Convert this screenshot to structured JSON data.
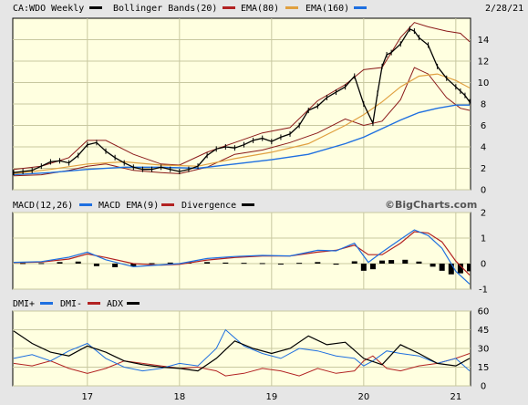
{
  "chart_data": [
    {
      "type": "line",
      "panel": "price",
      "title": "CA:WDO Weekly",
      "date": "2/28/21",
      "legend": [
        {
          "label": "Bollinger Bands(20)",
          "color": "#000000"
        },
        {
          "label": "EMA(80)",
          "color": "#b22222"
        },
        {
          "label": "EMA(160)",
          "color": "#e0a040"
        },
        {
          "label": "",
          "color": "#1e6fe0"
        }
      ],
      "ylim": [
        0,
        16
      ],
      "yticks": [
        0,
        2,
        4,
        6,
        8,
        10,
        12,
        14
      ],
      "x_years": [
        "17",
        "18",
        "19",
        "20",
        "21"
      ],
      "x_year_positions": [
        2017.0,
        2018.0,
        2019.0,
        2020.0,
        2021.0
      ],
      "x_range": [
        2016.19,
        2021.16
      ],
      "price": {
        "x": [
          2016.2,
          2016.3,
          2016.4,
          2016.5,
          2016.6,
          2016.7,
          2016.8,
          2016.9,
          2017.0,
          2017.1,
          2017.2,
          2017.3,
          2017.4,
          2017.5,
          2017.6,
          2017.7,
          2017.8,
          2017.9,
          2018.0,
          2018.1,
          2018.2,
          2018.3,
          2018.4,
          2018.5,
          2018.6,
          2018.7,
          2018.8,
          2018.9,
          2019.0,
          2019.1,
          2019.2,
          2019.3,
          2019.4,
          2019.5,
          2019.6,
          2019.7,
          2019.8,
          2019.9,
          2020.0,
          2020.1,
          2020.15,
          2020.2,
          2020.25,
          2020.3,
          2020.4,
          2020.5,
          2020.55,
          2020.6,
          2020.7,
          2020.8,
          2020.9,
          2021.0,
          2021.05,
          2021.1,
          2021.15
        ],
        "y": [
          1.6,
          1.7,
          1.8,
          2.2,
          2.6,
          2.7,
          2.5,
          3.2,
          4.2,
          4.4,
          3.6,
          3.0,
          2.5,
          2.1,
          1.9,
          1.9,
          2.1,
          1.9,
          1.7,
          1.9,
          2.2,
          3.2,
          3.8,
          4.0,
          3.9,
          4.2,
          4.6,
          4.8,
          4.5,
          4.9,
          5.2,
          6.0,
          7.4,
          7.8,
          8.6,
          9.1,
          9.6,
          10.6,
          8.0,
          6.2,
          9.0,
          11.5,
          12.6,
          12.8,
          13.6,
          15.0,
          14.8,
          14.2,
          13.5,
          11.5,
          10.4,
          9.6,
          9.2,
          8.8,
          8.2
        ]
      },
      "ema80": {
        "x": [
          2016.2,
          2016.6,
          2017.0,
          2017.4,
          2017.8,
          2018.2,
          2018.6,
          2019.0,
          2019.4,
          2019.8,
          2020.0,
          2020.2,
          2020.4,
          2020.6,
          2020.8,
          2021.0,
          2021.15
        ],
        "y": [
          1.5,
          1.9,
          2.4,
          2.6,
          2.3,
          2.2,
          2.9,
          3.5,
          4.3,
          6.0,
          7.0,
          8.2,
          9.6,
          10.6,
          10.8,
          10.2,
          9.5
        ]
      },
      "ema160": {
        "x": [
          2016.2,
          2016.6,
          2017.0,
          2017.4,
          2017.8,
          2018.2,
          2018.6,
          2019.0,
          2019.4,
          2019.8,
          2020.0,
          2020.2,
          2020.4,
          2020.6,
          2020.8,
          2021.0,
          2021.15
        ],
        "y": [
          1.4,
          1.6,
          1.9,
          2.1,
          2.1,
          2.0,
          2.4,
          2.8,
          3.3,
          4.3,
          4.9,
          5.7,
          6.5,
          7.2,
          7.6,
          7.9,
          7.9
        ]
      },
      "bb_upper": {
        "x": [
          2016.2,
          2016.5,
          2016.8,
          2017.0,
          2017.2,
          2017.5,
          2017.8,
          2018.0,
          2018.3,
          2018.6,
          2018.9,
          2019.2,
          2019.5,
          2019.8,
          2020.0,
          2020.2,
          2020.4,
          2020.55,
          2020.7,
          2020.9,
          2021.05,
          2021.15
        ],
        "y": [
          1.9,
          2.2,
          3.0,
          4.6,
          4.6,
          3.3,
          2.4,
          2.3,
          3.5,
          4.4,
          5.3,
          5.8,
          8.3,
          9.8,
          11.2,
          11.4,
          14.2,
          15.6,
          15.2,
          14.8,
          14.6,
          13.8
        ]
      },
      "bb_lower": {
        "x": [
          2016.2,
          2016.5,
          2016.8,
          2017.0,
          2017.2,
          2017.5,
          2017.8,
          2018.0,
          2018.3,
          2018.6,
          2018.9,
          2019.2,
          2019.5,
          2019.8,
          2020.0,
          2020.2,
          2020.4,
          2020.55,
          2020.7,
          2020.9,
          2021.05,
          2021.15
        ],
        "y": [
          1.3,
          1.4,
          1.8,
          2.2,
          2.4,
          1.8,
          1.6,
          1.5,
          2.1,
          3.3,
          3.7,
          4.4,
          5.3,
          6.6,
          6.0,
          6.4,
          8.4,
          11.4,
          10.8,
          8.6,
          7.6,
          7.4
        ]
      }
    },
    {
      "type": "line",
      "panel": "macd",
      "legend": [
        {
          "label": "MACD(12,26)",
          "color": "#1e6fe0"
        },
        {
          "label": "MACD EMA(9)",
          "color": "#b22222"
        },
        {
          "label": "Divergence",
          "color": "#000000"
        }
      ],
      "watermark": "©BigCharts.com",
      "ylim": [
        -1,
        2
      ],
      "yticks": [
        -1,
        0,
        1,
        2
      ],
      "macd": {
        "x": [
          2016.2,
          2016.5,
          2016.8,
          2017.0,
          2017.2,
          2017.5,
          2017.8,
          2018.0,
          2018.3,
          2018.6,
          2018.9,
          2019.2,
          2019.5,
          2019.7,
          2019.9,
          2020.05,
          2020.2,
          2020.4,
          2020.55,
          2020.7,
          2020.85,
          2021.0,
          2021.15
        ],
        "y": [
          0.05,
          0.08,
          0.25,
          0.45,
          0.15,
          -0.12,
          -0.05,
          0.0,
          0.2,
          0.28,
          0.32,
          0.3,
          0.52,
          0.5,
          0.8,
          0.05,
          0.45,
          0.95,
          1.32,
          1.1,
          0.6,
          -0.3,
          -0.8
        ]
      },
      "signal": {
        "x": [
          2016.2,
          2016.5,
          2016.8,
          2017.0,
          2017.2,
          2017.5,
          2017.8,
          2018.0,
          2018.3,
          2018.6,
          2018.9,
          2019.2,
          2019.5,
          2019.7,
          2019.9,
          2020.05,
          2020.2,
          2020.4,
          2020.55,
          2020.7,
          2020.85,
          2021.0,
          2021.15
        ],
        "y": [
          0.04,
          0.06,
          0.18,
          0.38,
          0.24,
          0.0,
          -0.06,
          -0.03,
          0.14,
          0.24,
          0.3,
          0.3,
          0.45,
          0.52,
          0.72,
          0.35,
          0.35,
          0.8,
          1.25,
          1.2,
          0.85,
          0.1,
          -0.45
        ]
      },
      "divergence": {
        "x": [
          2016.3,
          2016.5,
          2016.7,
          2016.9,
          2017.1,
          2017.3,
          2017.5,
          2017.7,
          2017.9,
          2018.1,
          2018.3,
          2018.5,
          2018.7,
          2018.9,
          2019.1,
          2019.3,
          2019.5,
          2019.7,
          2019.9,
          2020.0,
          2020.1,
          2020.2,
          2020.3,
          2020.45,
          2020.6,
          2020.75,
          2020.85,
          2020.95,
          2021.05,
          2021.15
        ],
        "y": [
          0.02,
          0.02,
          0.06,
          0.08,
          -0.1,
          -0.14,
          -0.1,
          0.02,
          0.04,
          0.04,
          0.06,
          0.04,
          0.03,
          0.02,
          -0.02,
          0.03,
          0.06,
          -0.04,
          0.09,
          -0.28,
          -0.22,
          0.12,
          0.14,
          0.15,
          0.08,
          -0.12,
          -0.28,
          -0.42,
          -0.38,
          -0.3
        ]
      }
    },
    {
      "type": "line",
      "panel": "dmi",
      "legend": [
        {
          "label": "DMI+",
          "color": "#1e6fe0"
        },
        {
          "label": "DMI-",
          "color": "#b22222"
        },
        {
          "label": "ADX",
          "color": "#000000"
        }
      ],
      "ylim": [
        0,
        60
      ],
      "yticks": [
        0,
        15,
        30,
        45,
        60
      ],
      "dmi_plus": {
        "x": [
          2016.2,
          2016.4,
          2016.6,
          2016.8,
          2017.0,
          2017.2,
          2017.4,
          2017.6,
          2017.8,
          2018.0,
          2018.2,
          2018.4,
          2018.5,
          2018.7,
          2018.9,
          2019.1,
          2019.3,
          2019.5,
          2019.7,
          2019.9,
          2020.0,
          2020.1,
          2020.25,
          2020.4,
          2020.6,
          2020.8,
          2021.0,
          2021.15
        ],
        "y": [
          22,
          25,
          20,
          28,
          34,
          22,
          15,
          12,
          14,
          18,
          16,
          30,
          45,
          32,
          26,
          22,
          30,
          28,
          24,
          22,
          16,
          20,
          28,
          26,
          24,
          18,
          22,
          12
        ]
      },
      "dmi_minus": {
        "x": [
          2016.2,
          2016.4,
          2016.6,
          2016.8,
          2017.0,
          2017.2,
          2017.4,
          2017.6,
          2017.8,
          2018.0,
          2018.2,
          2018.4,
          2018.5,
          2018.7,
          2018.9,
          2019.1,
          2019.3,
          2019.5,
          2019.7,
          2019.9,
          2020.0,
          2020.1,
          2020.25,
          2020.4,
          2020.6,
          2020.8,
          2021.0,
          2021.15
        ],
        "y": [
          18,
          16,
          20,
          14,
          10,
          14,
          20,
          18,
          16,
          14,
          15,
          12,
          8,
          10,
          14,
          12,
          8,
          14,
          10,
          12,
          20,
          24,
          14,
          12,
          16,
          18,
          22,
          26
        ]
      },
      "adx": {
        "x": [
          2016.2,
          2016.4,
          2016.6,
          2016.8,
          2017.0,
          2017.2,
          2017.4,
          2017.6,
          2017.8,
          2018.0,
          2018.2,
          2018.4,
          2018.6,
          2018.8,
          2019.0,
          2019.2,
          2019.4,
          2019.6,
          2019.8,
          2020.0,
          2020.2,
          2020.4,
          2020.6,
          2020.8,
          2021.0,
          2021.15
        ],
        "y": [
          44,
          34,
          27,
          24,
          32,
          27,
          20,
          17,
          15,
          14,
          12,
          22,
          36,
          30,
          26,
          30,
          40,
          33,
          35,
          22,
          17,
          33,
          26,
          18,
          16,
          22
        ]
      }
    }
  ]
}
